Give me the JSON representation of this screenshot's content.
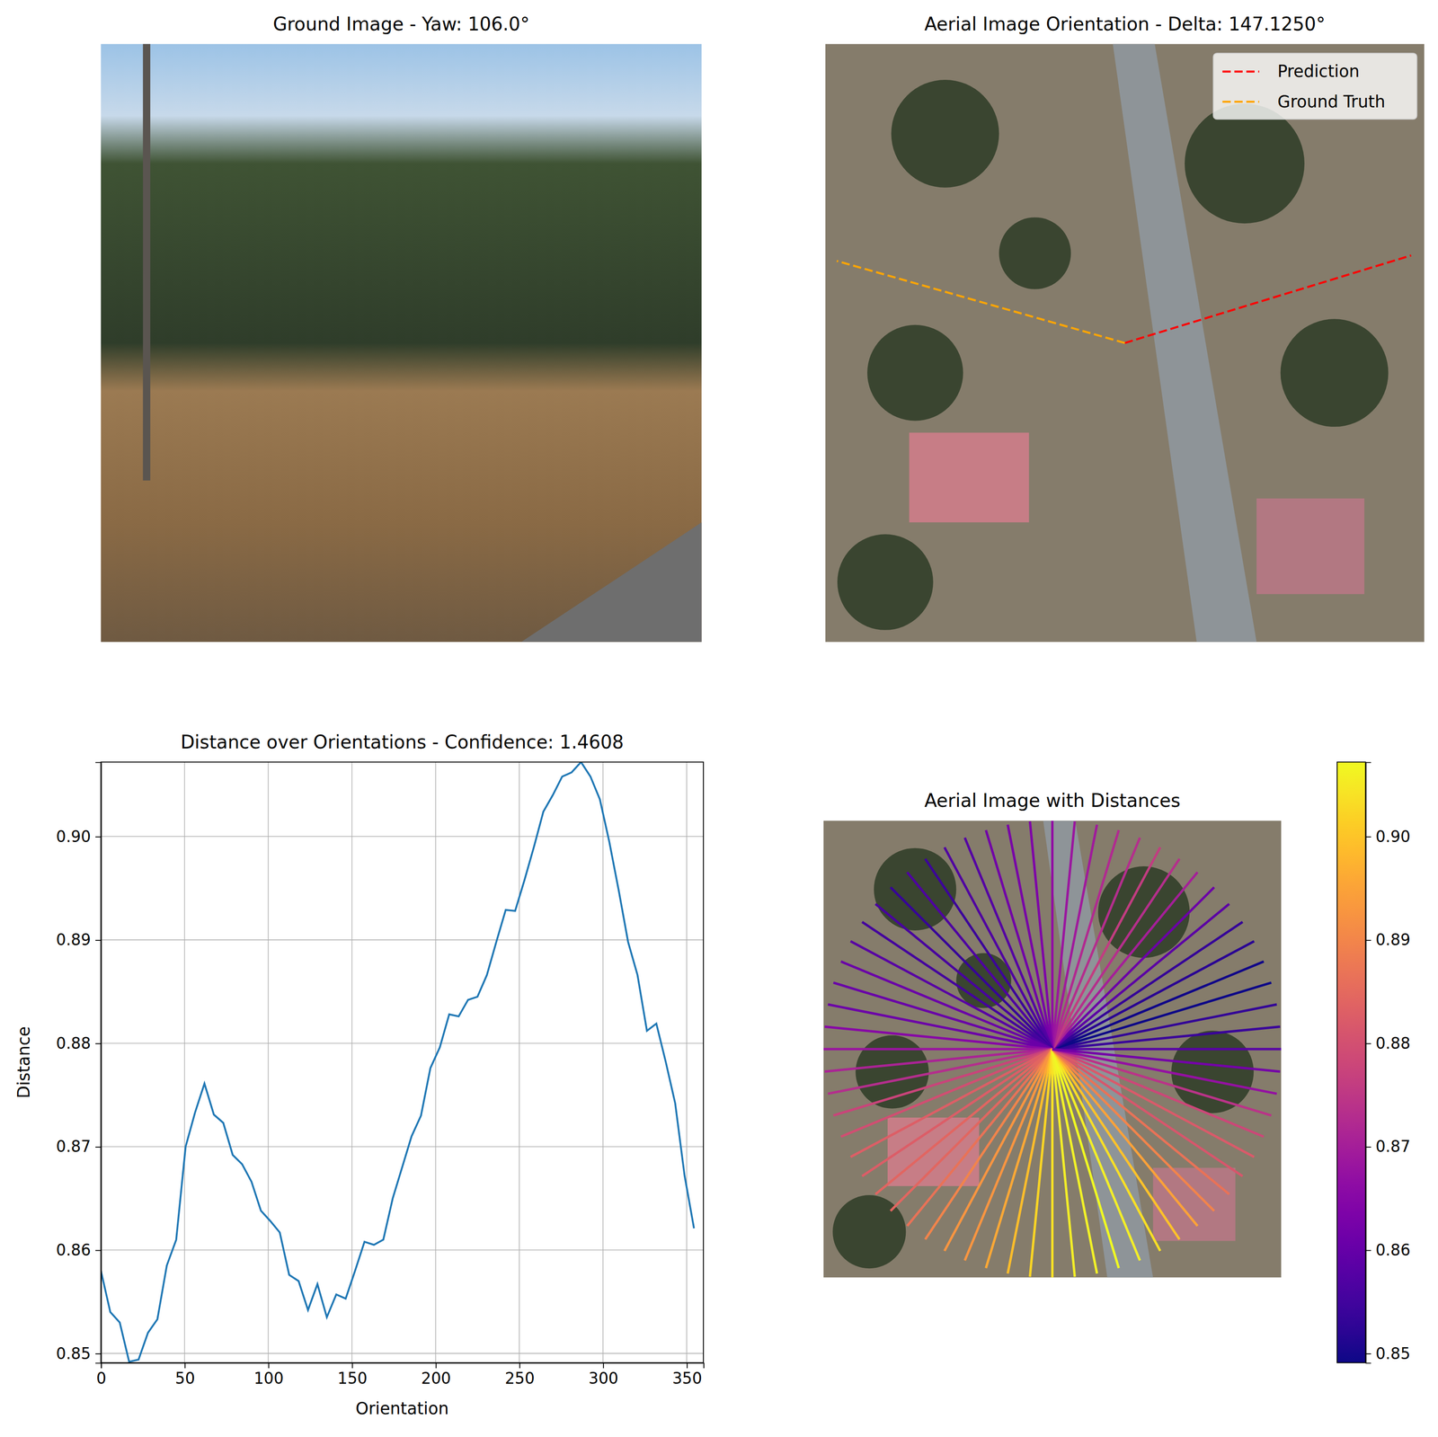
{
  "chart_data": [
    {
      "type": "image",
      "title": "Ground Image - Yaw: 106.0°"
    },
    {
      "type": "orientation",
      "title": "Aerial Image Orientation - Delta: 147.1250°",
      "series": [
        {
          "name": "Prediction",
          "color": "#ff0000",
          "line_style": "dashed",
          "angle": 17.0
        },
        {
          "name": "Ground Truth",
          "color": "#ffa500",
          "line_style": "dashed",
          "angle": 164.1
        }
      ],
      "legend": "upper right"
    },
    {
      "type": "line",
      "title": "Distance over Orientations - Confidence: 1.4608",
      "x_label": "Orientation",
      "y_label": "Distance",
      "color": "#1f77b4",
      "grid": true,
      "x": [
        0,
        5.625,
        11.25,
        16.875,
        22.5,
        28.125,
        33.75,
        39.375,
        45,
        50.625,
        56.25,
        61.875,
        67.5,
        73.125,
        78.75,
        84.375,
        90,
        95.625,
        101.25,
        106.875,
        112.5,
        118.125,
        123.75,
        129.375,
        135,
        140.625,
        146.25,
        151.875,
        157.5,
        163.125,
        168.75,
        174.375,
        180,
        185.625,
        191.25,
        196.875,
        202.5,
        208.125,
        213.75,
        219.375,
        225,
        230.625,
        236.25,
        241.875,
        247.5,
        253.125,
        258.75,
        264.375,
        270,
        275.625,
        281.25,
        286.875,
        292.5,
        298.125,
        303.75,
        309.375,
        315,
        320.625,
        326.25,
        331.875,
        337.5,
        343.125,
        348.75,
        354.375
      ],
      "values": [
        0.858,
        0.854,
        0.853,
        0.8492,
        0.8494,
        0.852,
        0.8533,
        0.8585,
        0.861,
        0.87,
        0.8733,
        0.8761,
        0.8731,
        0.8723,
        0.8692,
        0.8683,
        0.8666,
        0.8638,
        0.8628,
        0.8617,
        0.8576,
        0.857,
        0.8542,
        0.8567,
        0.8535,
        0.8557,
        0.8553,
        0.858,
        0.8608,
        0.8605,
        0.861,
        0.865,
        0.868,
        0.871,
        0.873,
        0.8776,
        0.8796,
        0.8828,
        0.8826,
        0.8842,
        0.8845,
        0.8866,
        0.8898,
        0.8929,
        0.8928,
        0.8958,
        0.899,
        0.9024,
        0.904,
        0.9058,
        0.9062,
        0.9072,
        0.9058,
        0.9036,
        0.8995,
        0.8948,
        0.8898,
        0.8866,
        0.8812,
        0.8819,
        0.8782,
        0.8742,
        0.8672,
        0.8621
      ],
      "xlim": [
        0,
        360
      ],
      "xticks": [
        0,
        50,
        100,
        150,
        200,
        250,
        300,
        350
      ],
      "ylim": [
        0.8491,
        0.9072
      ],
      "yticks": [
        0.85,
        0.86,
        0.87,
        0.88,
        0.89,
        {
          "value": 0.9,
          "label": "0.90"
        }
      ]
    },
    {
      "type": "radial",
      "title": "Aerial Image with Distances",
      "x": [
        0,
        5.625,
        11.25,
        16.875,
        22.5,
        28.125,
        33.75,
        39.375,
        45,
        50.625,
        56.25,
        61.875,
        67.5,
        73.125,
        78.75,
        84.375,
        90,
        95.625,
        101.25,
        106.875,
        112.5,
        118.125,
        123.75,
        129.375,
        135,
        140.625,
        146.25,
        151.875,
        157.5,
        163.125,
        168.75,
        174.375,
        180,
        185.625,
        191.25,
        196.875,
        202.5,
        208.125,
        213.75,
        219.375,
        225,
        230.625,
        236.25,
        241.875,
        247.5,
        253.125,
        258.75,
        264.375,
        270,
        275.625,
        281.25,
        286.875,
        292.5,
        298.125,
        303.75,
        309.375,
        315,
        320.625,
        326.25,
        331.875,
        337.5,
        343.125,
        348.75,
        354.375
      ],
      "values": [
        0.858,
        0.854,
        0.853,
        0.8492,
        0.8494,
        0.852,
        0.8533,
        0.8585,
        0.861,
        0.87,
        0.8733,
        0.8761,
        0.8731,
        0.8723,
        0.8692,
        0.8683,
        0.8666,
        0.8638,
        0.8628,
        0.8617,
        0.8576,
        0.857,
        0.8542,
        0.8567,
        0.8535,
        0.8557,
        0.8553,
        0.858,
        0.8608,
        0.8605,
        0.861,
        0.865,
        0.868,
        0.871,
        0.873,
        0.8776,
        0.8796,
        0.8828,
        0.8826,
        0.8842,
        0.8845,
        0.8866,
        0.8898,
        0.8929,
        0.8928,
        0.8958,
        0.899,
        0.9024,
        0.904,
        0.9058,
        0.9062,
        0.9072,
        0.9058,
        0.9036,
        0.8995,
        0.8948,
        0.8898,
        0.8866,
        0.8812,
        0.8819,
        0.8782,
        0.8742,
        0.8672,
        0.8621
      ],
      "color_range": [
        0.8491,
        0.9072
      ],
      "color_ticks": [
        0.85,
        0.86,
        0.87,
        0.88,
        0.89,
        {
          "value": 0.9,
          "label": "0.90"
        }
      ]
    }
  ]
}
